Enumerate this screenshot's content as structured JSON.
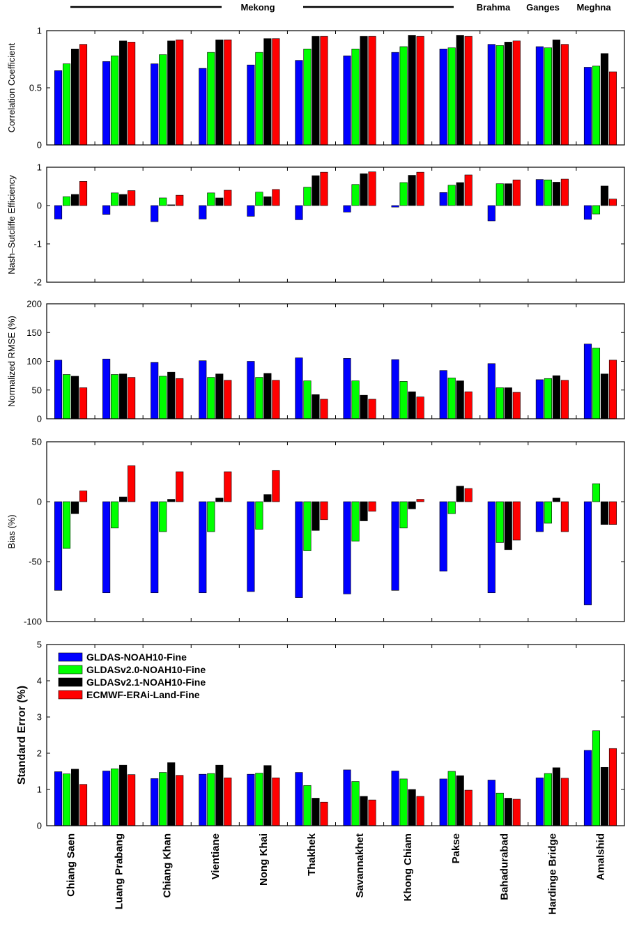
{
  "chart_data": {
    "type": "bar",
    "stations": [
      "Chiang Saen",
      "Luang Prabang",
      "Chiang Khan",
      "Vientiane",
      "Nong Khai",
      "Thakhek",
      "Savannakhet",
      "Khong Chiam",
      "Pakse",
      "Bahadurabad",
      "Hardinge Bridge",
      "Amalshid"
    ],
    "basins": [
      {
        "label": "Mekong",
        "first_station": 0,
        "last_station": 8
      },
      {
        "label": "Brahma",
        "first_station": 9,
        "last_station": 9
      },
      {
        "label": "Ganges",
        "first_station": 10,
        "last_station": 10
      },
      {
        "label": "Meghna",
        "first_station": 11,
        "last_station": 11
      }
    ],
    "series": [
      {
        "name": "GLDAS-NOAH10-Fine",
        "color": "#0000ff"
      },
      {
        "name": "GLDASv2.0-NOAH10-Fine",
        "color": "#00ff00"
      },
      {
        "name": "GLDASv2.1-NOAH10-Fine",
        "color": "#000000"
      },
      {
        "name": "ECMWF-ERAi-Land-Fine",
        "color": "#ff0000"
      }
    ],
    "legend_position": "upper-left of Standard Error panel",
    "panels": [
      {
        "ylabel": "Correlation Coefficient",
        "ylim": [
          0,
          1
        ],
        "yticks": [
          0,
          0.5,
          1
        ],
        "ytick_labels": [
          "0",
          "0.5",
          "1"
        ],
        "values": [
          [
            0.65,
            0.71,
            0.84,
            0.88
          ],
          [
            0.73,
            0.78,
            0.91,
            0.9
          ],
          [
            0.71,
            0.79,
            0.91,
            0.92
          ],
          [
            0.67,
            0.81,
            0.92,
            0.92
          ],
          [
            0.7,
            0.81,
            0.93,
            0.93
          ],
          [
            0.74,
            0.84,
            0.95,
            0.95
          ],
          [
            0.78,
            0.84,
            0.95,
            0.95
          ],
          [
            0.81,
            0.86,
            0.96,
            0.95
          ],
          [
            0.84,
            0.85,
            0.96,
            0.95
          ],
          [
            0.88,
            0.87,
            0.9,
            0.91
          ],
          [
            0.86,
            0.85,
            0.92,
            0.88
          ],
          [
            0.68,
            0.69,
            0.8,
            0.64
          ]
        ]
      },
      {
        "ylabel": "Nash–Sutcliffe Efficiency",
        "ylim": [
          -2,
          1
        ],
        "yticks": [
          -2,
          -1,
          0,
          1
        ],
        "ytick_labels": [
          "-2",
          "-1",
          "0",
          "1"
        ],
        "values": [
          [
            -0.35,
            0.23,
            0.29,
            0.63
          ],
          [
            -0.23,
            0.33,
            0.29,
            0.39
          ],
          [
            -0.42,
            0.2,
            0.02,
            0.27
          ],
          [
            -0.35,
            0.33,
            0.2,
            0.4
          ],
          [
            -0.28,
            0.35,
            0.23,
            0.42
          ],
          [
            -0.37,
            0.48,
            0.78,
            0.87
          ],
          [
            -0.17,
            0.55,
            0.83,
            0.88
          ],
          [
            -0.04,
            0.6,
            0.79,
            0.87
          ],
          [
            0.34,
            0.53,
            0.6,
            0.8
          ],
          [
            -0.4,
            0.57,
            0.57,
            0.67
          ],
          [
            0.68,
            0.67,
            0.61,
            0.69
          ],
          [
            -0.36,
            -0.22,
            0.51,
            0.17
          ]
        ]
      },
      {
        "ylabel": "Normalized RMSE (%)",
        "ylim": [
          0,
          200
        ],
        "yticks": [
          0,
          50,
          100,
          150,
          200
        ],
        "ytick_labels": [
          "0",
          "50",
          "100",
          "150",
          "200"
        ],
        "values": [
          [
            102,
            77,
            74,
            54
          ],
          [
            104,
            77,
            78,
            72
          ],
          [
            98,
            74,
            81,
            70
          ],
          [
            101,
            72,
            78,
            67
          ],
          [
            100,
            72,
            79,
            67
          ],
          [
            106,
            66,
            42,
            34
          ],
          [
            105,
            66,
            41,
            34
          ],
          [
            103,
            65,
            47,
            38
          ],
          [
            84,
            71,
            66,
            47
          ],
          [
            96,
            54,
            54,
            46
          ],
          [
            68,
            70,
            75,
            67
          ],
          [
            130,
            123,
            78,
            102
          ]
        ]
      },
      {
        "ylabel": "Bias (%)",
        "ylim": [
          -100,
          50
        ],
        "yticks": [
          -100,
          -50,
          0,
          50
        ],
        "ytick_labels": [
          "-100",
          "-50",
          "0",
          "50"
        ],
        "values": [
          [
            -74,
            -39,
            -10,
            9
          ],
          [
            -76,
            -22,
            4,
            30
          ],
          [
            -76,
            -25,
            2,
            25
          ],
          [
            -76,
            -25,
            3,
            25
          ],
          [
            -75,
            -23,
            6,
            26
          ],
          [
            -80,
            -41,
            -24,
            -15
          ],
          [
            -77,
            -33,
            -16,
            -8
          ],
          [
            -74,
            -22,
            -6,
            2
          ],
          [
            -58,
            -10,
            13,
            11
          ],
          [
            -76,
            -34,
            -40,
            -32
          ],
          [
            -25,
            -18,
            3,
            -25
          ],
          [
            -86,
            15,
            -19,
            -19
          ]
        ]
      },
      {
        "ylabel": "Standard Error (%)",
        "ylim": [
          0,
          5
        ],
        "yticks": [
          0,
          1,
          2,
          3,
          4,
          5
        ],
        "ytick_labels": [
          "0",
          "1",
          "2",
          "3",
          "4",
          "5"
        ],
        "values": [
          [
            1.49,
            1.43,
            1.56,
            1.14
          ],
          [
            1.51,
            1.57,
            1.67,
            1.41
          ],
          [
            1.3,
            1.47,
            1.74,
            1.39
          ],
          [
            1.42,
            1.44,
            1.67,
            1.32
          ],
          [
            1.42,
            1.45,
            1.66,
            1.32
          ],
          [
            1.47,
            1.11,
            0.76,
            0.65
          ],
          [
            1.54,
            1.22,
            0.81,
            0.71
          ],
          [
            1.51,
            1.29,
            1.0,
            0.81
          ],
          [
            1.29,
            1.5,
            1.38,
            0.98
          ],
          [
            1.26,
            0.9,
            0.76,
            0.73
          ],
          [
            1.32,
            1.44,
            1.6,
            1.31
          ],
          [
            2.08,
            2.62,
            1.61,
            2.13
          ]
        ]
      }
    ]
  }
}
